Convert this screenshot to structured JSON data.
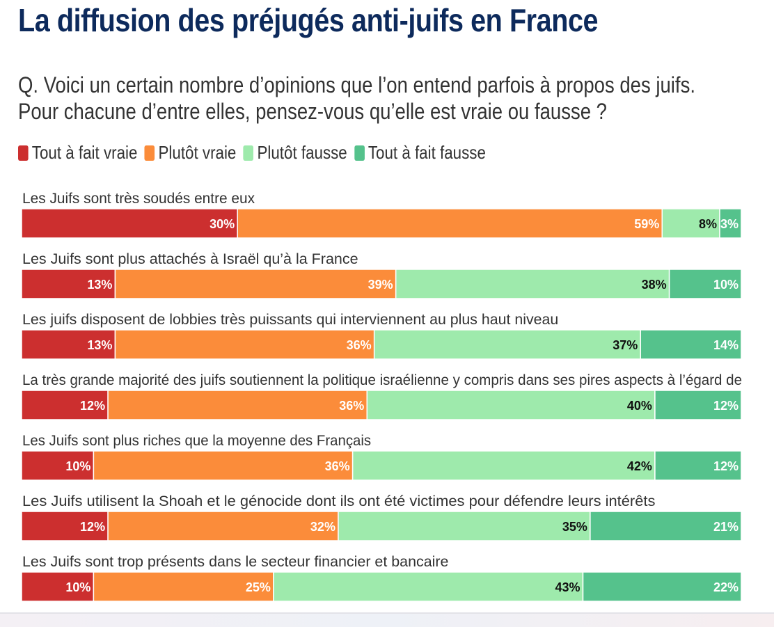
{
  "chart_data": {
    "type": "bar",
    "title": "La diffusion des préjugés anti-juifs en France",
    "subtitle": "Q. Voici un certain nombre d’opinions que l’on entend parfois à propos des juifs. Pour chacune d’entre elles, pensez-vous qu’elle est vraie ou fausse ?",
    "legend_position": "top-left",
    "xlim": [
      0,
      100
    ],
    "categories": [
      "Les Juifs sont très soudés entre eux",
      "Les Juifs sont plus attachés à Israël qu’à la France",
      "Les juifs disposent de lobbies très puissants qui interviennent au plus haut niveau",
      "La très grande majorité des juifs soutiennent la politique israélienne y compris dans ses pires aspects à l’égard de",
      "Les Juifs sont plus riches que la moyenne des Français",
      "Les Juifs utilisent la Shoah et le génocide dont ils ont été victimes pour défendre leurs intérêts",
      "Les Juifs sont trop présents dans le secteur financier et bancaire"
    ],
    "series": [
      {
        "name": "Tout à fait vraie",
        "color": "#cc2f2f",
        "label_color": "#ffffff",
        "values": [
          30,
          13,
          13,
          12,
          10,
          12,
          10
        ]
      },
      {
        "name": "Plutôt vraie",
        "color": "#fb8c3a",
        "label_color": "#ffffff",
        "values": [
          59,
          39,
          36,
          36,
          36,
          32,
          25
        ]
      },
      {
        "name": "Plutôt fausse",
        "color": "#9eeaac",
        "label_color": "#111111",
        "values": [
          8,
          38,
          37,
          40,
          42,
          35,
          43
        ]
      },
      {
        "name": "Tout à fait fausse",
        "color": "#55c28c",
        "label_color": "#ffffff",
        "values": [
          3,
          10,
          14,
          12,
          12,
          21,
          22
        ]
      }
    ],
    "value_suffix": "%"
  }
}
